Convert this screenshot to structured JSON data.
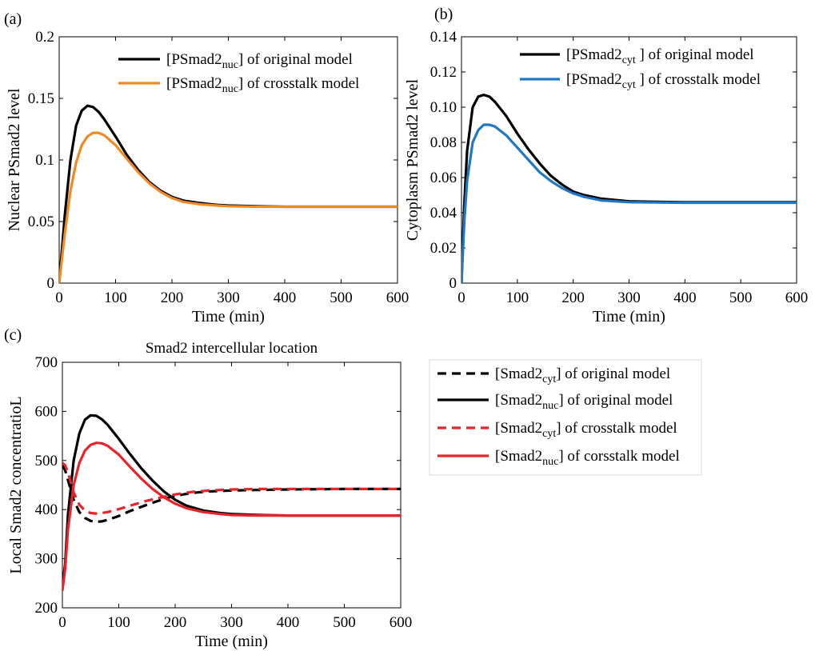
{
  "chart_data": [
    {
      "id": "a",
      "panel_label": "(a)",
      "type": "line",
      "title": "",
      "xlabel": "Time (min)",
      "ylabel": "Nuclear PSmad2 level",
      "xlim": [
        0,
        600
      ],
      "ylim": [
        0,
        0.2
      ],
      "xticks": [
        0,
        100,
        200,
        300,
        400,
        500,
        600
      ],
      "yticks": [
        0,
        0.05,
        0.1,
        0.15,
        0.2
      ],
      "ytick_labels": [
        "0",
        "0.05",
        "0.1",
        "0.15",
        "0.2"
      ],
      "legend_position": "top-right",
      "series": [
        {
          "name": "[PSmad2nuc] of original model",
          "legend_prefix": "[PSmad2",
          "legend_sub": "nuc",
          "legend_suffix": "] of original model",
          "color": "#000000",
          "dash": "solid",
          "x": [
            0,
            10,
            20,
            30,
            40,
            50,
            60,
            70,
            80,
            100,
            120,
            140,
            160,
            180,
            200,
            220,
            250,
            280,
            300,
            350,
            400,
            500,
            600
          ],
          "y": [
            0,
            0.055,
            0.1,
            0.128,
            0.14,
            0.144,
            0.143,
            0.139,
            0.133,
            0.119,
            0.104,
            0.092,
            0.082,
            0.075,
            0.07,
            0.067,
            0.065,
            0.0635,
            0.063,
            0.0625,
            0.062,
            0.062,
            0.062
          ]
        },
        {
          "name": "[PSmad2nuc] of crosstalk model",
          "legend_prefix": "[PSmad2",
          "legend_sub": "nuc",
          "legend_suffix": "] of crosstalk model",
          "color": "#f08a24",
          "dash": "solid",
          "x": [
            0,
            10,
            20,
            30,
            40,
            50,
            60,
            70,
            80,
            100,
            120,
            140,
            160,
            180,
            200,
            220,
            250,
            280,
            300,
            350,
            400,
            500,
            600
          ],
          "y": [
            0,
            0.04,
            0.075,
            0.098,
            0.112,
            0.119,
            0.122,
            0.122,
            0.12,
            0.112,
            0.101,
            0.09,
            0.081,
            0.074,
            0.069,
            0.066,
            0.064,
            0.063,
            0.0625,
            0.062,
            0.062,
            0.062,
            0.062
          ]
        }
      ]
    },
    {
      "id": "b",
      "panel_label": "(b)",
      "type": "line",
      "title": "",
      "xlabel": "Time (min)",
      "ylabel": "Cytoplasm PSmad2 level",
      "xlim": [
        0,
        600
      ],
      "ylim": [
        0,
        0.14
      ],
      "xticks": [
        0,
        100,
        200,
        300,
        400,
        500,
        600
      ],
      "yticks": [
        0,
        0.02,
        0.04,
        0.06,
        0.08,
        0.1,
        0.12,
        0.14
      ],
      "ytick_labels": [
        "0",
        "0.02",
        "0.04",
        "0.06",
        "0.08",
        "0.10",
        "0.12",
        "0.14"
      ],
      "legend_position": "top-right",
      "series": [
        {
          "name": "[PSmad2cyt ] of original model",
          "legend_prefix": "[PSmad2",
          "legend_sub": "cyt",
          "legend_suffix": " ] of original model",
          "color": "#000000",
          "dash": "solid",
          "x": [
            0,
            5,
            10,
            20,
            30,
            40,
            50,
            60,
            80,
            100,
            120,
            140,
            160,
            180,
            200,
            220,
            250,
            300,
            350,
            400,
            500,
            600
          ],
          "y": [
            0,
            0.045,
            0.075,
            0.1,
            0.106,
            0.107,
            0.106,
            0.103,
            0.095,
            0.085,
            0.076,
            0.068,
            0.061,
            0.056,
            0.052,
            0.05,
            0.048,
            0.0465,
            0.0462,
            0.046,
            0.046,
            0.046
          ]
        },
        {
          "name": "[PSmad2cyt ] of crosstalk model",
          "legend_prefix": "[PSmad2",
          "legend_sub": "cyt",
          "legend_suffix": " ] of crosstalk model",
          "color": "#1f78c1",
          "dash": "solid",
          "x": [
            0,
            5,
            10,
            20,
            30,
            40,
            50,
            60,
            80,
            100,
            120,
            140,
            160,
            180,
            200,
            220,
            250,
            300,
            350,
            400,
            500,
            600
          ],
          "y": [
            0,
            0.035,
            0.058,
            0.08,
            0.087,
            0.09,
            0.09,
            0.089,
            0.084,
            0.077,
            0.07,
            0.063,
            0.058,
            0.054,
            0.051,
            0.049,
            0.047,
            0.046,
            0.0458,
            0.0457,
            0.0457,
            0.0457
          ]
        }
      ]
    },
    {
      "id": "c",
      "panel_label": "(c)",
      "type": "line",
      "title": "Smad2 intercellular location",
      "xlabel": "Time (min)",
      "ylabel": "Local Smad2 concentratioL",
      "xlim": [
        0,
        600
      ],
      "ylim": [
        200,
        700
      ],
      "xticks": [
        0,
        100,
        200,
        300,
        400,
        500,
        600
      ],
      "yticks": [
        200,
        300,
        400,
        500,
        600,
        700
      ],
      "ytick_labels": [
        "200",
        "300",
        "400",
        "500",
        "600",
        "700"
      ],
      "legend_position": "outside-right",
      "series": [
        {
          "name": "[Smad2cyt] of original model",
          "legend_prefix": "[Smad2",
          "legend_sub": "cyt",
          "legend_suffix": "] of original model",
          "color": "#000000",
          "dash": "dashed",
          "x": [
            0,
            5,
            10,
            15,
            20,
            30,
            40,
            50,
            60,
            70,
            80,
            100,
            120,
            150,
            180,
            200,
            230,
            260,
            300,
            350,
            400,
            500,
            600
          ],
          "y": [
            490,
            480,
            460,
            440,
            420,
            395,
            383,
            377,
            375,
            376,
            379,
            387,
            397,
            410,
            422,
            428,
            434,
            437,
            439,
            440,
            441,
            442,
            442
          ]
        },
        {
          "name": "[Smad2nuc] of original model",
          "legend_prefix": "[Smad2",
          "legend_sub": "nuc",
          "legend_suffix": "] of original model",
          "color": "#000000",
          "dash": "solid",
          "x": [
            0,
            5,
            10,
            20,
            30,
            40,
            50,
            60,
            70,
            80,
            100,
            120,
            140,
            160,
            180,
            200,
            220,
            250,
            280,
            300,
            350,
            400,
            500,
            600
          ],
          "y": [
            240,
            290,
            390,
            500,
            555,
            583,
            592,
            591,
            584,
            573,
            544,
            513,
            484,
            459,
            437,
            420,
            408,
            398,
            393,
            391,
            389,
            388,
            388,
            388
          ]
        },
        {
          "name": "[Smad2cyt] of crosstalk model",
          "legend_prefix": "[Smad2",
          "legend_sub": "cyt",
          "legend_suffix": "] of crosstalk model",
          "color": "#e8232a",
          "dash": "dashed",
          "x": [
            0,
            5,
            10,
            15,
            20,
            30,
            40,
            50,
            60,
            70,
            80,
            100,
            120,
            150,
            180,
            200,
            230,
            260,
            300,
            350,
            400,
            500,
            600
          ],
          "y": [
            495,
            490,
            475,
            455,
            435,
            410,
            398,
            393,
            392,
            393,
            395,
            401,
            408,
            418,
            426,
            431,
            436,
            439,
            441,
            442,
            442,
            442,
            442
          ]
        },
        {
          "name": "[Smad2nuc] of corsstalk model",
          "legend_prefix": "[Smad2",
          "legend_sub": "nuc",
          "legend_suffix": "] of corsstalk model",
          "color": "#e8232a",
          "dash": "solid",
          "x": [
            0,
            5,
            10,
            20,
            30,
            40,
            50,
            60,
            70,
            80,
            100,
            120,
            140,
            160,
            180,
            200,
            220,
            250,
            280,
            300,
            350,
            400,
            500,
            600
          ],
          "y": [
            235,
            280,
            360,
            450,
            495,
            520,
            532,
            536,
            535,
            530,
            512,
            487,
            463,
            442,
            425,
            412,
            403,
            395,
            391,
            389,
            388,
            388,
            388,
            388
          ]
        }
      ]
    }
  ]
}
